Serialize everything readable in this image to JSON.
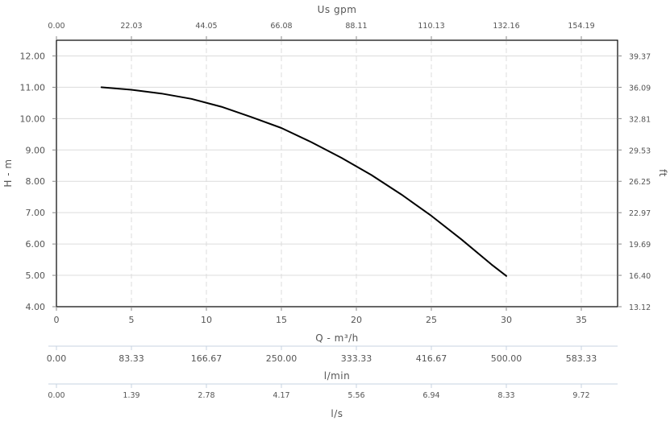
{
  "chart_data": {
    "type": "line",
    "series": [
      {
        "x": [
          3,
          5,
          7,
          9,
          11,
          13,
          15,
          17,
          19,
          21,
          23,
          25,
          27,
          29,
          30
        ],
        "y": [
          11.0,
          10.92,
          10.8,
          10.63,
          10.38,
          10.05,
          9.7,
          9.25,
          8.75,
          8.2,
          7.58,
          6.9,
          6.15,
          5.35,
          4.98
        ],
        "color": "#000000"
      }
    ],
    "xlabel": "Q - m³/h",
    "ylabel": "H - m",
    "xlim": [
      0,
      37
    ],
    "ylim": [
      4,
      12.5
    ],
    "x_ticks": [
      0,
      5,
      10,
      15,
      20,
      25,
      30,
      35
    ],
    "y_ticks": [
      "4.00",
      "5.00",
      "6.00",
      "7.00",
      "8.00",
      "9.00",
      "10.00",
      "11.00",
      "12.00"
    ],
    "grid": true,
    "top_axis": {
      "label": "Us gpm",
      "ticks": [
        "0.00",
        "22.03",
        "44.05",
        "66.08",
        "88.11",
        "110.13",
        "132.16",
        "154.19"
      ]
    },
    "right_axis": {
      "label": "ft",
      "ticks": [
        "13.12",
        "16.40",
        "19.69",
        "22.97",
        "26.25",
        "29.53",
        "32.81",
        "36.09",
        "39.37"
      ]
    },
    "extra_axes": [
      {
        "label": "l/min",
        "ticks": [
          "0.00",
          "83.33",
          "166.67",
          "250.00",
          "333.33",
          "416.67",
          "500.00",
          "583.33"
        ]
      },
      {
        "label": "l/s",
        "ticks": [
          "0.00",
          "1.39",
          "2.78",
          "4.17",
          "5.56",
          "6.94",
          "8.33",
          "9.72"
        ]
      }
    ]
  }
}
